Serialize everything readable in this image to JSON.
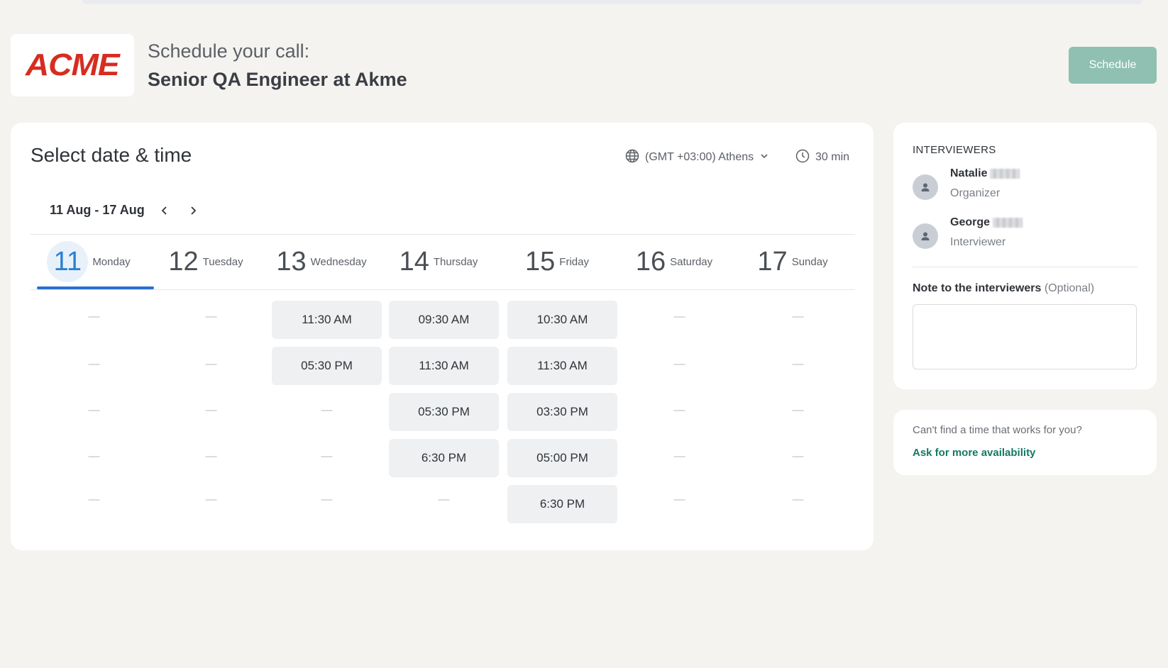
{
  "header": {
    "logo_text": "ACME",
    "subtitle": "Schedule your call:",
    "title": "Senior QA Engineer at Akme",
    "schedule_label": "Schedule"
  },
  "picker": {
    "title": "Select date & time",
    "timezone": "(GMT +03:00) Athens",
    "duration": "30 min",
    "week_range": "11 Aug - 17 Aug",
    "days": [
      {
        "num": "11",
        "name": "Monday",
        "selected": true,
        "slots": []
      },
      {
        "num": "12",
        "name": "Tuesday",
        "selected": false,
        "slots": []
      },
      {
        "num": "13",
        "name": "Wednesday",
        "selected": false,
        "slots": [
          "11:30 AM",
          "05:30 PM"
        ]
      },
      {
        "num": "14",
        "name": "Thursday",
        "selected": false,
        "slots": [
          "09:30 AM",
          "11:30 AM",
          "05:30 PM",
          "6:30 PM"
        ]
      },
      {
        "num": "15",
        "name": "Friday",
        "selected": false,
        "slots": [
          "10:30 AM",
          "11:30 AM",
          "03:30 PM",
          "05:00 PM",
          "6:30 PM"
        ]
      },
      {
        "num": "16",
        "name": "Saturday",
        "selected": false,
        "slots": []
      },
      {
        "num": "17",
        "name": "Sunday",
        "selected": false,
        "slots": []
      }
    ],
    "empty_marker": "—"
  },
  "interviewers": {
    "heading": "INTERVIEWERS",
    "people": [
      {
        "name": "Natalie",
        "role": "Organizer"
      },
      {
        "name": "George",
        "role": "Interviewer"
      }
    ],
    "note_label": "Note to the interviewers",
    "note_optional": "(Optional)",
    "note_value": ""
  },
  "availability": {
    "text": "Can't find a time that works for you?",
    "link": "Ask for more availability"
  },
  "colors": {
    "accent_blue": "#2a6fd1",
    "brand_red": "#d62d20",
    "schedule_green": "#8fc0b2",
    "link_green": "#127a63"
  }
}
